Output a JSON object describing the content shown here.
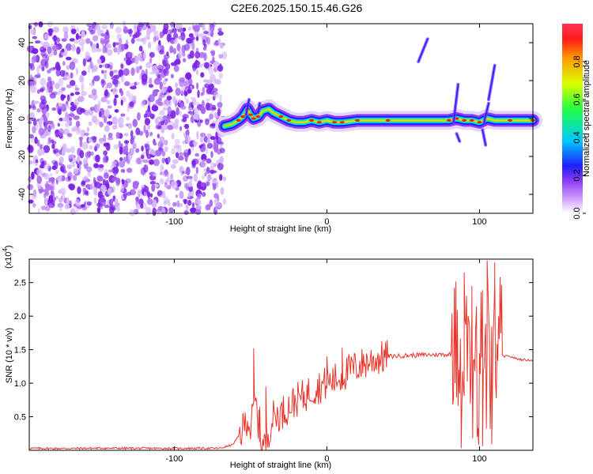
{
  "title": "C2E6.2025.150.15.46.G26",
  "colors": {
    "snr_line": "#e8362d",
    "frame": "#000000",
    "scatter_purple": "#7a22e6",
    "colormap": [
      "#ffffff",
      "#cf9cff",
      "#8b3cf5",
      "#1f1fff",
      "#00c8ff",
      "#22ff44",
      "#d9ff00",
      "#ff9900",
      "#ff1a1a"
    ]
  },
  "chart_data": [
    {
      "type": "heatmap",
      "name": "spectrogram",
      "xlabel": "Height of straight line (km)",
      "ylabel": "Frequency (Hz)",
      "xlim": [
        -195,
        135
      ],
      "ylim": [
        -50,
        50
      ],
      "x_ticks": [
        -100,
        0,
        100
      ],
      "y_ticks": [
        -40,
        -20,
        0,
        20,
        40
      ],
      "x_tick_labels": [
        "-100",
        "0",
        "100"
      ],
      "y_tick_labels": [
        "-40",
        "-20",
        "0",
        "20",
        "40"
      ],
      "noise_region_x": [
        -195,
        -67
      ],
      "trace": {
        "x": [
          -67,
          -62,
          -58,
          -55,
          -52,
          -50,
          -48,
          -45,
          -42,
          -38,
          -35,
          -30,
          -25,
          -20,
          -15,
          -10,
          -5,
          0,
          5,
          10,
          20,
          40,
          60,
          80,
          85,
          90,
          95,
          100,
          105,
          110,
          120,
          135
        ],
        "y": [
          -4,
          -3,
          -1,
          1,
          5,
          2,
          0,
          1,
          4,
          5,
          3,
          1,
          -1,
          -2,
          -2,
          -1,
          -2,
          -1,
          -2,
          -2,
          -1,
          -1,
          -1,
          -1,
          0,
          -1,
          -1,
          -2,
          0,
          -1,
          -1,
          -1
        ]
      },
      "streaks": [
        {
          "x": [
            60,
            66
          ],
          "y": [
            30,
            42
          ]
        },
        {
          "x": [
            -53,
            -51
          ],
          "y": [
            2,
            10
          ]
        },
        {
          "x": [
            -45,
            -44
          ],
          "y": [
            3,
            8
          ]
        },
        {
          "x": [
            83,
            86
          ],
          "y": [
            -2,
            18
          ]
        },
        {
          "x": [
            85,
            87
          ],
          "y": [
            -8,
            -12
          ]
        },
        {
          "x": [
            103,
            106
          ],
          "y": [
            -2,
            8
          ]
        },
        {
          "x": [
            106,
            110
          ],
          "y": [
            10,
            28
          ]
        },
        {
          "x": [
            102,
            104
          ],
          "y": [
            -6,
            -14
          ]
        }
      ],
      "colorbar": {
        "label": "Normalized spectral amplitude",
        "range": [
          0,
          1
        ],
        "ticks": [
          0.0,
          0.2,
          0.4,
          0.6,
          0.8
        ],
        "tick_labels": [
          "0.0",
          "0.2",
          "0.4",
          "0.6",
          "0.8"
        ]
      }
    },
    {
      "type": "line",
      "name": "snr",
      "xlabel": "Height of straight line (km)",
      "ylabel": "SNR (10 * v/v)",
      "y_multiplier": "(x10",
      "y_multiplier_exp": "4",
      "y_multiplier_close": ")",
      "xlim": [
        -195,
        135
      ],
      "ylim": [
        0,
        28500
      ],
      "x_ticks": [
        -100,
        0,
        100
      ],
      "y_ticks": [
        5000,
        10000,
        15000,
        20000,
        25000
      ],
      "x_tick_labels": [
        "-100",
        "0",
        "100"
      ],
      "y_tick_labels": [
        "0.5",
        "1.0",
        "1.5",
        "2.0",
        "2.5"
      ],
      "series": [
        {
          "x": [
            -195,
            -170,
            -150,
            -120,
            -100,
            -80,
            -70,
            -62,
            -58,
            -55,
            -52,
            -50,
            -47,
            -43,
            -40,
            -38,
            -35,
            -30,
            -25,
            -20,
            -15,
            -10,
            -5,
            0,
            5,
            10,
            15,
            20,
            30,
            40,
            60,
            80,
            85,
            90,
            95,
            100,
            105,
            110,
            115,
            120,
            125,
            135
          ],
          "y": [
            300,
            280,
            320,
            300,
            290,
            310,
            300,
            800,
            2000,
            3200,
            5000,
            3000,
            7500,
            1000,
            800,
            3000,
            5000,
            5500,
            6500,
            7500,
            8000,
            9000,
            9500,
            10000,
            10500,
            11000,
            12000,
            12500,
            13500,
            14000,
            14200,
            14300,
            14500,
            14000,
            13500,
            13800,
            14200,
            13800,
            14000,
            14000,
            13600,
            13400
          ]
        }
      ],
      "spikes": [
        {
          "x": -48,
          "y": 15200
        },
        {
          "x": -44,
          "y": 6500
        },
        {
          "x": -40,
          "y": 9500
        },
        {
          "x": 0,
          "y": 14000
        },
        {
          "x": 10,
          "y": 15300
        },
        {
          "x": 90,
          "y": 26500
        },
        {
          "x": 95,
          "y": 24500
        },
        {
          "x": 105,
          "y": 28300
        },
        {
          "x": 110,
          "y": 28000
        },
        {
          "x": 88,
          "y": 300
        },
        {
          "x": 102,
          "y": 600
        },
        {
          "x": 108,
          "y": 900
        }
      ]
    }
  ]
}
